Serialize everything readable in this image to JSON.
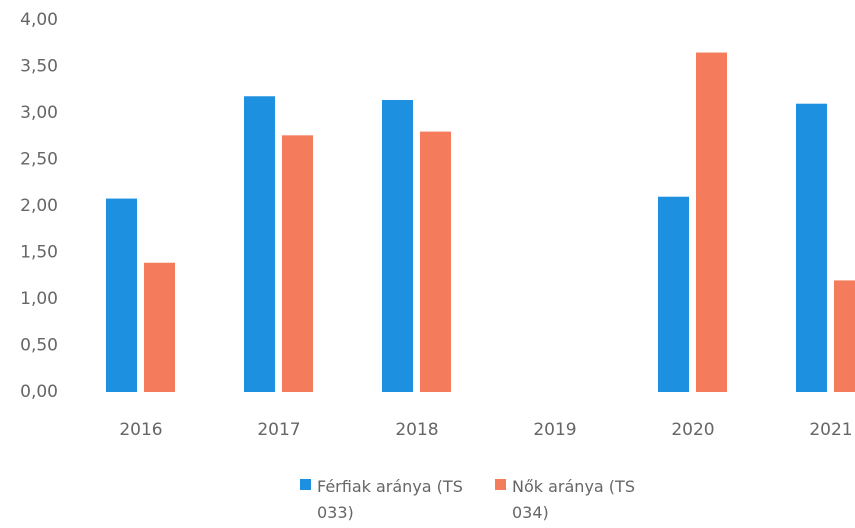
{
  "chart_data": {
    "type": "bar",
    "categories": [
      "2016",
      "2017",
      "2018",
      "2019",
      "2020",
      "2021"
    ],
    "series": [
      {
        "name": "Férfiak aránya (TS 033)",
        "color": "#1e90e0",
        "values": [
          2.08,
          3.18,
          3.14,
          null,
          2.1,
          3.1
        ]
      },
      {
        "name": "Nők aránya (TS 034)",
        "color": "#f47c5c",
        "values": [
          1.39,
          2.76,
          2.8,
          null,
          3.65,
          1.2
        ]
      }
    ],
    "ylim": [
      0,
      4
    ],
    "yticks": [
      {
        "value": 0,
        "label": "0,00"
      },
      {
        "value": 0.5,
        "label": "0,50"
      },
      {
        "value": 1,
        "label": "1,00"
      },
      {
        "value": 1.5,
        "label": "1,50"
      },
      {
        "value": 2,
        "label": "2,00"
      },
      {
        "value": 2.5,
        "label": "2,50"
      },
      {
        "value": 3,
        "label": "3,00"
      },
      {
        "value": 3.5,
        "label": "3,50"
      },
      {
        "value": 4,
        "label": "4,00"
      }
    ],
    "grid": false,
    "legend": "bottom"
  }
}
